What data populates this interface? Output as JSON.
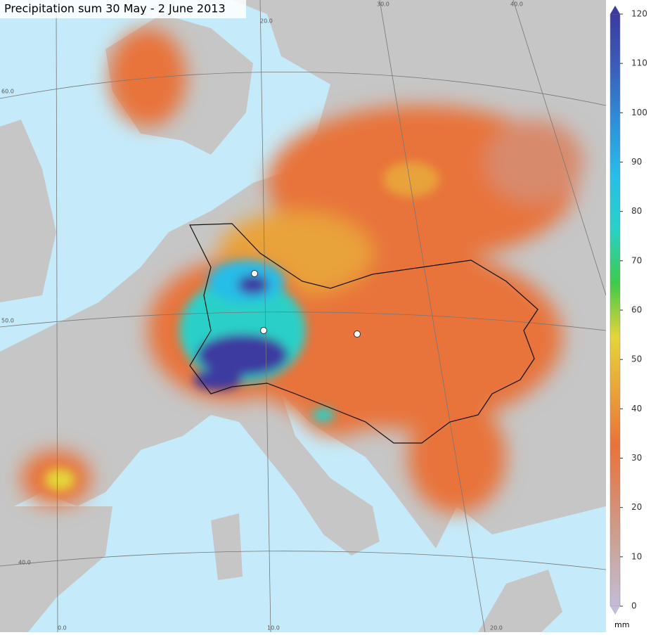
{
  "title": "Precipitation sum 30 May - 2 June 2013",
  "colorbar": {
    "unit": "mm",
    "range": [
      0,
      120
    ],
    "ticks": [
      0,
      10,
      20,
      30,
      40,
      50,
      60,
      70,
      80,
      90,
      100,
      110,
      120
    ],
    "colors": [
      "#c4bcd8",
      "#c8a8a0",
      "#d88a6c",
      "#e8733a",
      "#e9a33a",
      "#e6d43a",
      "#3fca4a",
      "#2ad0c8",
      "#28bde8",
      "#2f8fd8",
      "#3a5fb8",
      "#3d3aa0"
    ]
  },
  "map": {
    "graticule_labels": [
      "60.0",
      "50.0",
      "40.0",
      "20.0",
      "30.0",
      "40.0",
      "0.0",
      "10.0",
      "20.0"
    ]
  }
}
